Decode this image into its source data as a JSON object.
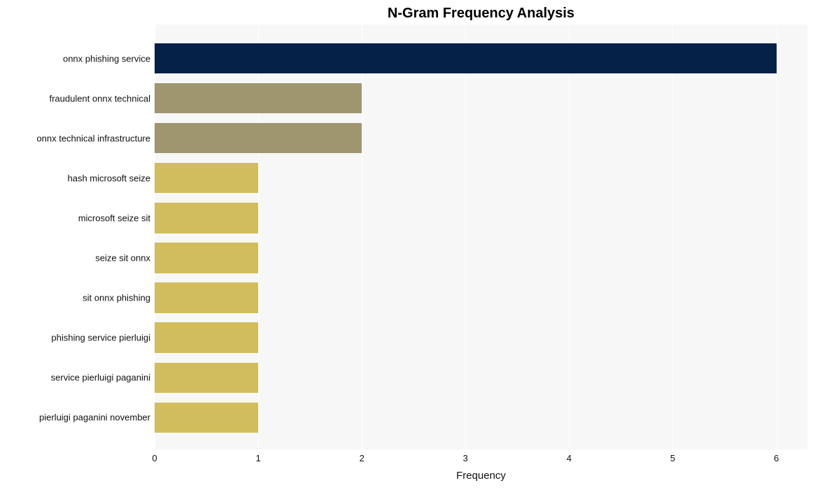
{
  "chart": {
    "type": "bar-horizontal",
    "title": "N-Gram Frequency Analysis",
    "title_fontsize": 20,
    "title_fontweight": "bold",
    "background_color": "#ffffff",
    "plot_background": "#f7f7f7",
    "grid_color": "#ffffff",
    "xlabel": "Frequency",
    "xlabel_fontsize": 15,
    "tick_fontsize": 13,
    "ylabel_fontsize": 13,
    "xlim": [
      0,
      6.3
    ],
    "xticks": [
      0,
      1,
      2,
      3,
      4,
      5,
      6
    ],
    "bar_height_ratio": 0.76,
    "categories": [
      "onnx phishing service",
      "fraudulent onnx technical",
      "onnx technical infrastructure",
      "hash microsoft seize",
      "microsoft seize sit",
      "seize sit onnx",
      "sit onnx phishing",
      "phishing service pierluigi",
      "service pierluigi paganini",
      "pierluigi paganini november"
    ],
    "values": [
      6,
      2,
      2,
      1,
      1,
      1,
      1,
      1,
      1,
      1
    ],
    "bar_colors": [
      "#052148",
      "#9f9670",
      "#9f9670",
      "#d1bd5e",
      "#d1bd5e",
      "#d1bd5e",
      "#d1bd5e",
      "#d1bd5e",
      "#d1bd5e",
      "#d1bd5e"
    ]
  }
}
